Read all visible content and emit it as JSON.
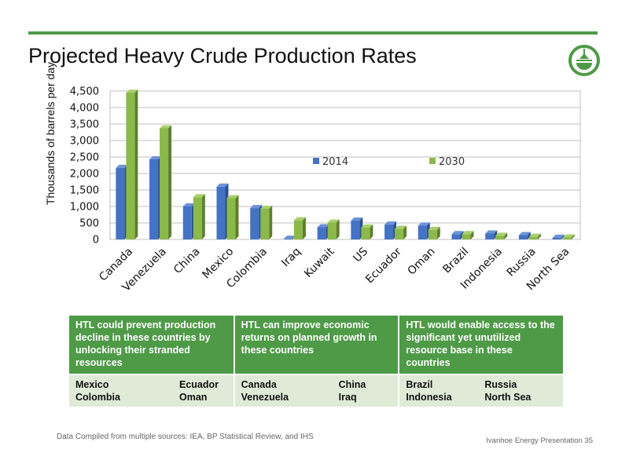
{
  "title": "Projected Heavy Crude Production Rates",
  "colors": {
    "accent": "#4e9a47",
    "series_2014": "#4472c4",
    "series_2030": "#8bb94a",
    "table_header": "#4e9a47",
    "table_body": "#dfead7"
  },
  "chart_data": {
    "type": "bar",
    "title": "",
    "xlabel": "",
    "ylabel": "Thousands of barrels per day",
    "categories": [
      "Canada",
      "Venezuela",
      "China",
      "Mexico",
      "Colombia",
      "Iraq",
      "Kuwait",
      "US",
      "Ecuador",
      "Oman",
      "Brazil",
      "Indonesia",
      "Russia",
      "North Sea"
    ],
    "series": [
      {
        "name": "2014",
        "values": [
          2170,
          2430,
          1000,
          1600,
          950,
          20,
          370,
          570,
          450,
          420,
          160,
          180,
          130,
          50
        ]
      },
      {
        "name": "2030",
        "values": [
          4450,
          3370,
          1280,
          1250,
          930,
          580,
          510,
          360,
          320,
          290,
          160,
          110,
          80,
          60
        ]
      }
    ],
    "ylim": [
      0,
      4500
    ],
    "yticks": [
      "0",
      "500",
      "1,000",
      "1,500",
      "2,000",
      "2,500",
      "3,000",
      "3,500",
      "4,000",
      "4,500"
    ],
    "grid": true,
    "legend": "top-right"
  },
  "table": {
    "headers": [
      "HTL could prevent production decline in these countries by unlocking their stranded resources",
      "HTL can improve economic returns on planned growth in these countries",
      "HTL would enable access to the significant yet unutilized resource base in these countries"
    ],
    "countries": [
      [
        [
          "Mexico",
          "Ecuador"
        ],
        [
          "Colombia",
          "Oman"
        ]
      ],
      [
        [
          "Canada",
          "China"
        ],
        [
          "Venezuela",
          "Iraq"
        ]
      ],
      [
        [
          "Brazil",
          "Russia"
        ],
        [
          "Indonesia",
          "North Sea"
        ]
      ]
    ]
  },
  "footnote": "Data Compiled from multiple sources:  IEA,  BP Statistical Review, and IHS",
  "footer": "Ivanhoe Energy Presentation  35"
}
